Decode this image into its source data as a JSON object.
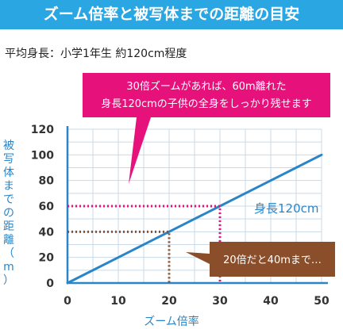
{
  "header": {
    "title": "ズーム倍率と被写体までの距離の目安"
  },
  "subtitle": "平均身長：小学1年生 約120cm程度",
  "chart_data": {
    "type": "line",
    "xlabel": "ズーム倍率",
    "ylabel": "被写体までの距離（m）",
    "ylabel_chars": [
      "被",
      "写",
      "体",
      "ま",
      "で",
      "の",
      "距",
      "離",
      "（",
      "m",
      "）"
    ],
    "xlim": [
      0,
      50
    ],
    "ylim": [
      0,
      120
    ],
    "x_ticks": [
      0,
      10,
      20,
      30,
      40,
      50
    ],
    "y_ticks": [
      0,
      20,
      40,
      60,
      80,
      100,
      120
    ],
    "grid": true,
    "series": [
      {
        "name": "身長120cm",
        "x": [
          0,
          10,
          20,
          30,
          40,
          50
        ],
        "y": [
          0,
          20,
          40,
          60,
          80,
          100
        ],
        "color": "#2a85c8"
      }
    ],
    "markers": [
      {
        "x": 30,
        "y": 60,
        "color": "#e6117a"
      },
      {
        "x": 20,
        "y": 40,
        "color": "#8b4e2a"
      }
    ],
    "annotations": [
      {
        "lines": [
          "30倍ズームがあれば、60m離れた",
          "身長120cmの子供の全身をしっかり残せます"
        ],
        "color": "#e6117a"
      },
      {
        "lines": [
          "20倍だと40mまで…"
        ],
        "color": "#8b4e2a"
      }
    ]
  }
}
